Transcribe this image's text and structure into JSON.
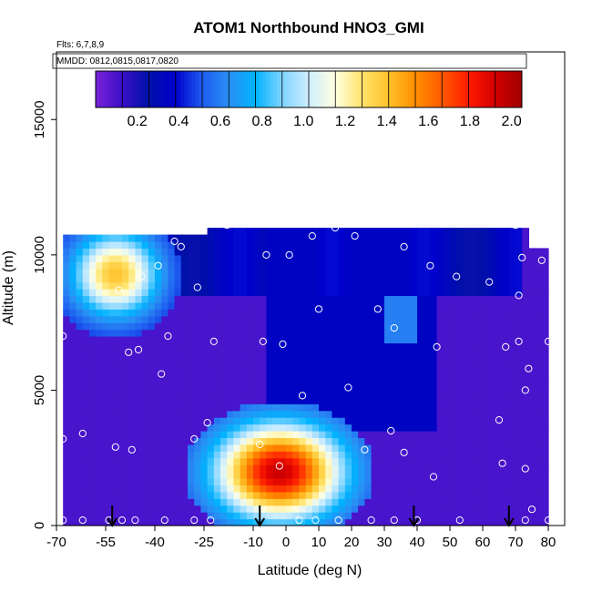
{
  "chart_data": {
    "type": "heatmap",
    "title": "ATOM1 Northbound HNO3_GMI",
    "flights_label": "Flts: 6,7,8,9",
    "mmdd_label": "MMDD: 0812,0815,0817,0820",
    "xlabel": "Latitude (deg N)",
    "ylabel": "Altitude (m)",
    "xlim": [
      -70,
      85
    ],
    "ylim": [
      0,
      17500
    ],
    "x_ticks": [
      "-70",
      "-55",
      "-40",
      "-25",
      "-10",
      "0",
      "10",
      "20",
      "30",
      "40",
      "50",
      "60",
      "70",
      "80"
    ],
    "x_tick_values": [
      -70,
      -55,
      -40,
      -25,
      -10,
      0,
      10,
      20,
      30,
      40,
      50,
      60,
      70,
      80
    ],
    "y_ticks": [
      "0",
      "5000",
      "10000",
      "15000"
    ],
    "y_tick_values": [
      0,
      5000,
      10000,
      15000
    ],
    "colorbar": {
      "min": 0.0,
      "max": 2.05,
      "tick_labels": [
        "0.2",
        "0.4",
        "0.6",
        "0.8",
        "1.0",
        "1.2",
        "1.4",
        "1.6",
        "1.8",
        "2.0"
      ],
      "tick_values": [
        0.2,
        0.4,
        0.6,
        0.8,
        1.0,
        1.2,
        1.4,
        1.6,
        1.8,
        2.0
      ],
      "colors": [
        "#7a22d8",
        "#3a10c8",
        "#0010a8",
        "#0000cc",
        "#1e5cf0",
        "#2a8ff4",
        "#00b4ff",
        "#7fd3ff",
        "#cfeeff",
        "#ffffe0",
        "#ffe36a",
        "#ffc12a",
        "#ff8f00",
        "#ff5a00",
        "#ff1a00",
        "#d40000",
        "#9e0000"
      ]
    },
    "field": {
      "lat_range": [
        -68,
        80
      ],
      "alt_range": [
        0,
        11000
      ],
      "background_value": 0.1,
      "features": [
        {
          "kind": "upper_troposphere_low",
          "lat": [
            -50,
            72
          ],
          "alt": [
            8500,
            11000
          ],
          "value": 0.4
        },
        {
          "kind": "tropical_column_low",
          "lat": [
            -5,
            45
          ],
          "alt": [
            3500,
            11000
          ],
          "value": 0.35
        },
        {
          "kind": "southern_upper_plume",
          "lat": [
            -68,
            -40
          ],
          "alt": [
            8000,
            11000
          ],
          "value": 0.8,
          "peak": 1.4,
          "peak_lat": -52,
          "peak_alt": 9300
        },
        {
          "kind": "tropical_lower_plume",
          "lat": [
            -20,
            20
          ],
          "alt": [
            500,
            3800
          ],
          "value": 0.9,
          "peak": 1.95,
          "peak_lat": -2,
          "peak_alt": 2000
        },
        {
          "kind": "northern_mid_patch",
          "lat": [
            30,
            40
          ],
          "alt": [
            6800,
            8500
          ],
          "value": 0.6
        }
      ]
    },
    "sample_points": [
      [
        -68,
        7000
      ],
      [
        -68,
        3200
      ],
      [
        -68,
        200
      ],
      [
        -62,
        3400
      ],
      [
        -62,
        200
      ],
      [
        -54,
        200
      ],
      [
        -52,
        2900
      ],
      [
        -51,
        8700
      ],
      [
        -50,
        200
      ],
      [
        -48,
        6400
      ],
      [
        -47,
        2800
      ],
      [
        -46,
        200
      ],
      [
        -45,
        6500
      ],
      [
        -44,
        9200
      ],
      [
        -39,
        9600
      ],
      [
        -38,
        5600
      ],
      [
        -37,
        200
      ],
      [
        -36,
        7000
      ],
      [
        -34,
        10500
      ],
      [
        -32,
        10300
      ],
      [
        -28,
        3200
      ],
      [
        -28,
        200
      ],
      [
        -27,
        8800
      ],
      [
        -25,
        11100
      ],
      [
        -24,
        3800
      ],
      [
        -23,
        200
      ],
      [
        -22,
        6800
      ],
      [
        -18,
        11100
      ],
      [
        -15,
        11200
      ],
      [
        -8,
        3000
      ],
      [
        -7,
        6800
      ],
      [
        -6,
        10000
      ],
      [
        -2,
        2200
      ],
      [
        -1,
        6700
      ],
      [
        1,
        10000
      ],
      [
        4,
        200
      ],
      [
        5,
        4800
      ],
      [
        8,
        10700
      ],
      [
        9,
        200
      ],
      [
        10,
        8000
      ],
      [
        15,
        11000
      ],
      [
        16,
        200
      ],
      [
        19,
        5100
      ],
      [
        21,
        10700
      ],
      [
        24,
        2800
      ],
      [
        26,
        200
      ],
      [
        28,
        8000
      ],
      [
        32,
        3500
      ],
      [
        33,
        7300
      ],
      [
        33,
        200
      ],
      [
        36,
        2700
      ],
      [
        36,
        10300
      ],
      [
        40,
        200
      ],
      [
        44,
        9600
      ],
      [
        45,
        1800
      ],
      [
        46,
        6600
      ],
      [
        52,
        9200
      ],
      [
        53,
        200
      ],
      [
        62,
        9000
      ],
      [
        65,
        3900
      ],
      [
        66,
        2300
      ],
      [
        67,
        6600
      ],
      [
        70,
        11100
      ],
      [
        71,
        6800
      ],
      [
        71,
        8500
      ],
      [
        72,
        9900
      ],
      [
        73,
        200
      ],
      [
        73,
        5000
      ],
      [
        73,
        2100
      ],
      [
        74,
        5800
      ],
      [
        75,
        600
      ],
      [
        78,
        9800
      ],
      [
        80,
        6800
      ],
      [
        80,
        200
      ]
    ],
    "flight_markers": [
      -53,
      -8,
      39,
      68
    ]
  }
}
